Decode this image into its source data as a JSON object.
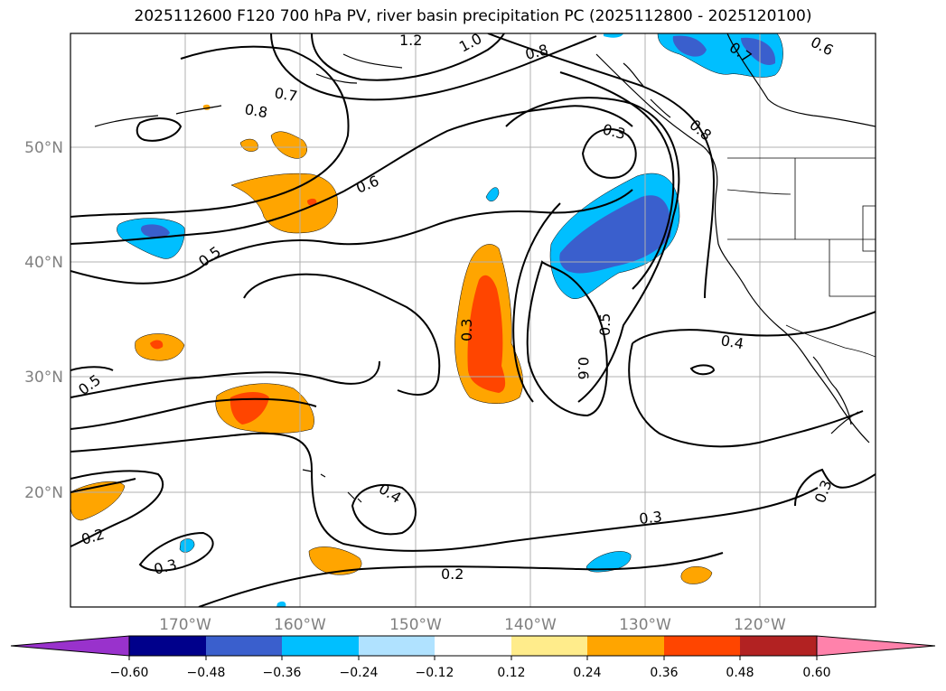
{
  "title": "2025112600 F120 700 hPa PV, river basin precipitation PC (2025112800 - 2025120100)",
  "lat_labels": [
    "50°N",
    "40°N",
    "30°N",
    "20°N"
  ],
  "lon_labels": [
    "170°W",
    "160°W",
    "150°W",
    "140°W",
    "130°W",
    "120°W"
  ],
  "contour_labels": [
    "1.2",
    "1.0",
    "0.8",
    "0.7",
    "0.8",
    "0.6",
    "0.5",
    "0.5",
    "0.3",
    "0.8",
    "0.7",
    "0.6",
    "0.5",
    "0.6",
    "0.4",
    "0.3",
    "0.4",
    "0.3",
    "0.2",
    "0.3",
    "0.2",
    "0.3"
  ],
  "colorbar": {
    "ticks": [
      "−0.60",
      "−0.48",
      "−0.36",
      "−0.24",
      "−0.12",
      "0.12",
      "0.24",
      "0.36",
      "0.48",
      "0.60"
    ],
    "colors": [
      "#9932cc",
      "#00008b",
      "#3a5fcd",
      "#00bfff",
      "#b0e2ff",
      "#ffffff",
      "#ffec8b",
      "#ffa500",
      "#ff4500",
      "#b22222",
      "#ff82ab"
    ]
  }
}
